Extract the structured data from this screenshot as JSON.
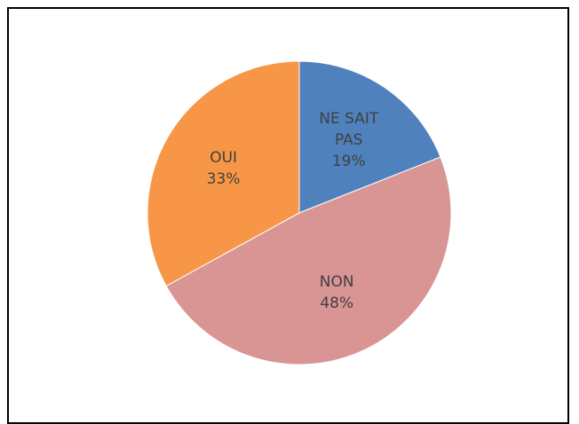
{
  "chart_data": {
    "type": "pie",
    "categories": [
      "NE SAIT PAS",
      "NON",
      "OUI"
    ],
    "values": [
      19,
      48,
      33
    ],
    "value_labels": [
      "19%",
      "48%",
      "33%"
    ],
    "colors": [
      "#4f81bd",
      "#d99594",
      "#f79646"
    ]
  }
}
